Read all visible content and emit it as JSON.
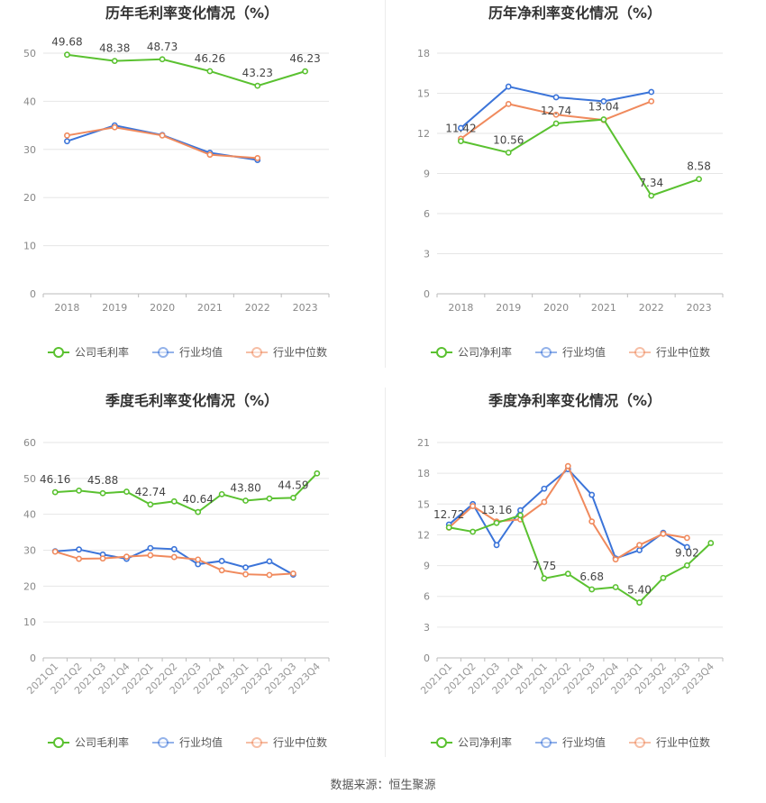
{
  "source": "数据来源：恒生聚源",
  "colors": {
    "company": "#5ac130",
    "avg": "#3b74d9",
    "median": "#f08a5d"
  },
  "chart_data": [
    {
      "type": "line",
      "title": "历年毛利率变化情况（%）",
      "categories": [
        "2018",
        "2019",
        "2020",
        "2021",
        "2022",
        "2023"
      ],
      "ylim": [
        0,
        50
      ],
      "yticks": [
        0,
        10,
        20,
        30,
        40,
        50
      ],
      "grid": true,
      "legend": "bottom",
      "series": [
        {
          "name": "公司毛利率",
          "key": "company",
          "values": [
            49.68,
            48.38,
            48.73,
            46.26,
            43.23,
            46.23
          ],
          "labels": [
            "49.68",
            "48.38",
            "48.73",
            "46.26",
            "43.23",
            "46.23"
          ]
        },
        {
          "name": "行业均值",
          "key": "avg",
          "values": [
            31.7,
            35.0,
            33.0,
            29.3,
            27.8,
            null
          ]
        },
        {
          "name": "行业中位数",
          "key": "median",
          "values": [
            32.9,
            34.6,
            32.9,
            28.9,
            28.2,
            null
          ]
        }
      ]
    },
    {
      "type": "line",
      "title": "历年净利率变化情况（%）",
      "categories": [
        "2018",
        "2019",
        "2020",
        "2021",
        "2022",
        "2023"
      ],
      "ylim": [
        0,
        18
      ],
      "yticks": [
        0,
        3,
        6,
        9,
        12,
        15,
        18
      ],
      "grid": true,
      "legend": "bottom",
      "series": [
        {
          "name": "公司净利率",
          "key": "company",
          "values": [
            11.42,
            10.56,
            12.74,
            13.04,
            7.34,
            8.58
          ],
          "labels": [
            "11.42",
            "10.56",
            "12.74",
            "13.04",
            "7.34",
            "8.58"
          ]
        },
        {
          "name": "行业均值",
          "key": "avg",
          "values": [
            12.4,
            15.5,
            14.7,
            14.4,
            15.1,
            null
          ]
        },
        {
          "name": "行业中位数",
          "key": "median",
          "values": [
            11.6,
            14.2,
            13.4,
            13.0,
            14.4,
            null
          ]
        }
      ]
    },
    {
      "type": "line",
      "title": "季度毛利率变化情况（%）",
      "categories": [
        "2021Q1",
        "2021Q2",
        "2021Q3",
        "2021Q4",
        "2022Q1",
        "2022Q2",
        "2022Q3",
        "2022Q4",
        "2023Q1",
        "2023Q2",
        "2023Q3",
        "2023Q4"
      ],
      "ylim": [
        0,
        60
      ],
      "yticks": [
        0,
        10,
        20,
        30,
        40,
        50,
        60
      ],
      "grid": true,
      "legend": "bottom",
      "series": [
        {
          "name": "公司毛利率",
          "key": "company",
          "values": [
            46.16,
            46.6,
            45.88,
            46.3,
            42.74,
            43.6,
            40.64,
            45.6,
            43.8,
            44.4,
            44.59,
            51.4
          ],
          "labels": [
            "46.16",
            "",
            "45.88",
            "",
            "42.74",
            "",
            "40.64",
            "",
            "43.80",
            "",
            "44.59",
            ""
          ]
        },
        {
          "name": "行业均值",
          "key": "avg",
          "values": [
            29.7,
            30.2,
            28.8,
            27.6,
            30.6,
            30.3,
            26.1,
            27.0,
            25.2,
            26.9,
            23.2,
            null
          ]
        },
        {
          "name": "行业中位数",
          "key": "median",
          "values": [
            29.6,
            27.6,
            27.7,
            28.2,
            28.6,
            28.1,
            27.4,
            24.4,
            23.3,
            23.1,
            23.5,
            null
          ]
        }
      ]
    },
    {
      "type": "line",
      "title": "季度净利率变化情况（%）",
      "categories": [
        "2021Q1",
        "2021Q2",
        "2021Q3",
        "2021Q4",
        "2022Q1",
        "2022Q2",
        "2022Q3",
        "2022Q4",
        "2023Q1",
        "2023Q2",
        "2023Q3",
        "2023Q4"
      ],
      "ylim": [
        0,
        21
      ],
      "yticks": [
        0,
        3,
        6,
        9,
        12,
        15,
        18,
        21
      ],
      "grid": true,
      "legend": "bottom",
      "series": [
        {
          "name": "公司净利率",
          "key": "company",
          "values": [
            12.72,
            12.3,
            13.16,
            13.9,
            7.75,
            8.2,
            6.68,
            6.9,
            5.4,
            7.8,
            9.02,
            11.2
          ],
          "labels": [
            "12.72",
            "",
            "13.16",
            "",
            "7.75",
            "",
            "6.68",
            "",
            "5.40",
            "",
            "9.02",
            ""
          ]
        },
        {
          "name": "行业均值",
          "key": "avg",
          "values": [
            13.0,
            15.0,
            11.0,
            14.4,
            16.5,
            18.4,
            15.9,
            9.7,
            10.5,
            12.2,
            10.8,
            null
          ]
        },
        {
          "name": "行业中位数",
          "key": "median",
          "values": [
            12.7,
            14.8,
            13.3,
            13.5,
            15.2,
            18.7,
            13.3,
            9.6,
            11.0,
            12.1,
            11.7,
            null
          ]
        }
      ]
    }
  ]
}
